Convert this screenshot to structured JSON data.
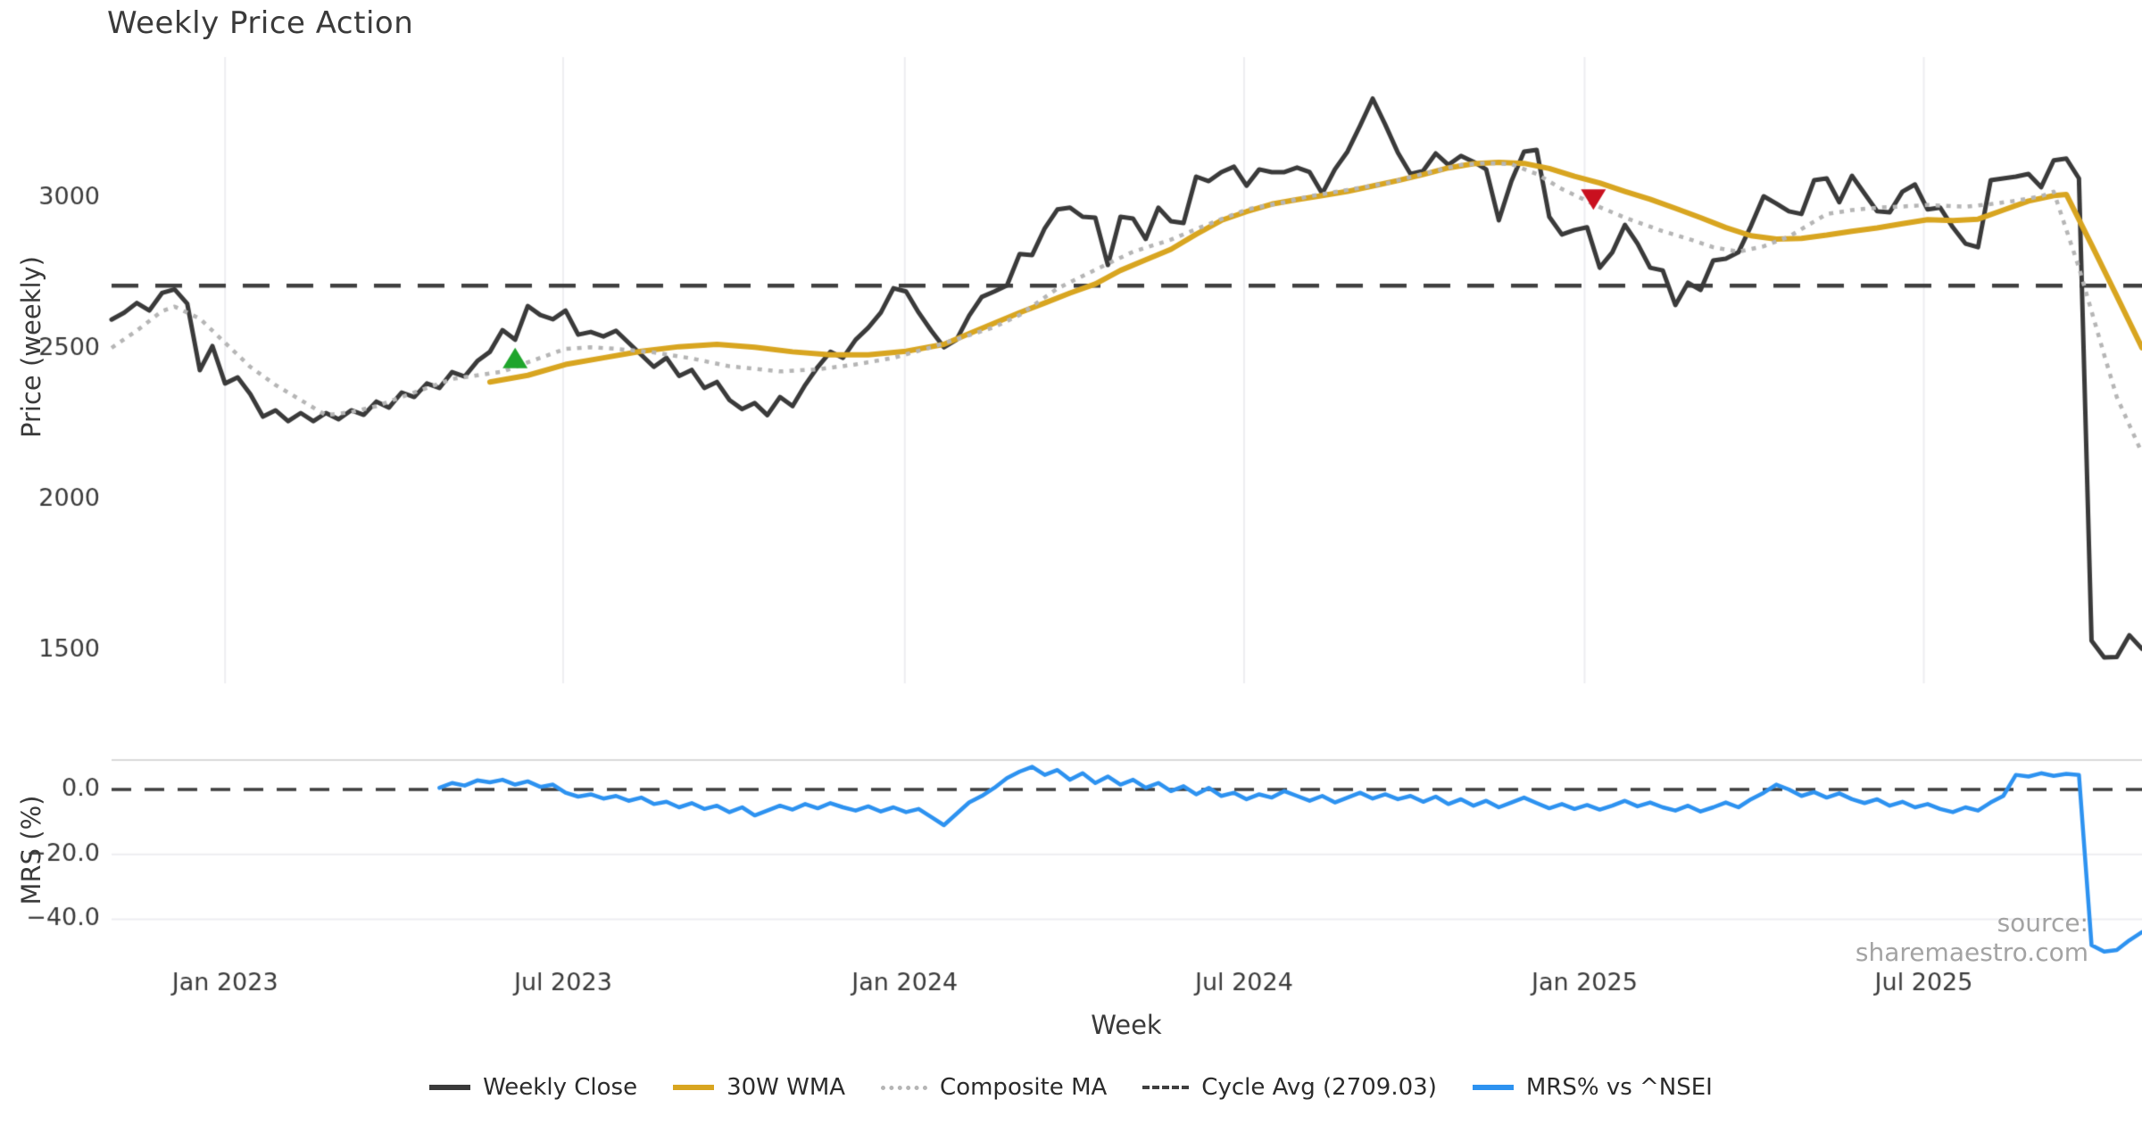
{
  "title": "Weekly Price Action",
  "source_note": "source: sharemaestro.com",
  "axes": {
    "price_axis_label": "Price (weekly)",
    "mrs_axis_label": "MRS (%)",
    "x_axis_label": "Week"
  },
  "legend": {
    "weekly_close": "Weekly Close",
    "wma": "30W WMA",
    "composite": "Composite MA",
    "cycle_avg": "Cycle Avg (2709.03)",
    "mrs": "MRS% vs ^NSEI"
  },
  "colors": {
    "close": "#3a3a3a",
    "wma": "#d8a520",
    "composite": "#b5b5b5",
    "cycle": "#3f3f3f",
    "mrs": "#2d92f0",
    "buy_marker": "#1fa52c",
    "sell_marker": "#c9101f",
    "grid": "#ededf1",
    "panel_border": "#d9d9d9",
    "tick_text": "#3a3a3a"
  },
  "chart_data": {
    "type": "line",
    "title": "Weekly Price Action",
    "x_unit": "week_index",
    "x_ticks": {
      "weeks": [
        9.0,
        35.8,
        62.9,
        89.8,
        116.8,
        143.7
      ],
      "labels": [
        "Jan 2023",
        "Jul 2023",
        "Jan 2024",
        "Jul 2024",
        "Jan 2025",
        "Jul 2025"
      ]
    },
    "price_panel": {
      "ylabel": "Price (weekly)",
      "yticks": [
        3000,
        2500,
        2000,
        1500
      ],
      "ylim": [
        1390,
        3465
      ],
      "cycle_avg": 2709.03,
      "close_values": [
        2597,
        2620,
        2652,
        2627,
        2685,
        2697,
        2650,
        2429,
        2509,
        2385,
        2405,
        2350,
        2275,
        2296,
        2260,
        2287,
        2260,
        2287,
        2266,
        2296,
        2281,
        2325,
        2305,
        2355,
        2340,
        2385,
        2370,
        2423,
        2408,
        2459,
        2490,
        2562,
        2530,
        2642,
        2612,
        2598,
        2627,
        2547,
        2556,
        2541,
        2560,
        2520,
        2480,
        2440,
        2470,
        2410,
        2430,
        2370,
        2390,
        2330,
        2300,
        2320,
        2280,
        2340,
        2310,
        2380,
        2440,
        2490,
        2470,
        2530,
        2570,
        2620,
        2701,
        2690,
        2620,
        2560,
        2505,
        2530,
        2610,
        2672,
        2690,
        2710,
        2814,
        2811,
        2900,
        2962,
        2968,
        2938,
        2935,
        2778,
        2938,
        2932,
        2864,
        2968,
        2923,
        2917,
        3071,
        3056,
        3086,
        3104,
        3041,
        3095,
        3086,
        3086,
        3101,
        3086,
        3015,
        3095,
        3154,
        3240,
        3330,
        3243,
        3150,
        3080,
        3090,
        3148,
        3110,
        3140,
        3120,
        3095,
        2926,
        3056,
        3154,
        3160,
        2938,
        2879,
        2894,
        2903,
        2769,
        2820,
        2911,
        2849,
        2769,
        2760,
        2645,
        2719,
        2695,
        2793,
        2799,
        2820,
        2908,
        3006,
        2982,
        2956,
        2947,
        3059,
        3065,
        2986,
        3074,
        3015,
        2956,
        2953,
        3021,
        3045,
        2962,
        2968,
        2903,
        2849,
        2837,
        3059,
        3065,
        3071,
        3080,
        3036,
        3125,
        3131,
        3065,
        1532,
        1476,
        1478,
        1550,
        1505
      ],
      "wma_pairs": [
        [
          30,
          2390
        ],
        [
          33,
          2412
        ],
        [
          36,
          2448
        ],
        [
          39,
          2470
        ],
        [
          42,
          2492
        ],
        [
          45,
          2507
        ],
        [
          48,
          2515
        ],
        [
          51,
          2505
        ],
        [
          54,
          2490
        ],
        [
          57,
          2480
        ],
        [
          60,
          2480
        ],
        [
          63,
          2492
        ],
        [
          66,
          2515
        ],
        [
          68,
          2550
        ],
        [
          70,
          2585
        ],
        [
          72,
          2620
        ],
        [
          74,
          2652
        ],
        [
          76,
          2685
        ],
        [
          78,
          2715
        ],
        [
          80,
          2760
        ],
        [
          82,
          2795
        ],
        [
          84,
          2830
        ],
        [
          86,
          2880
        ],
        [
          88,
          2926
        ],
        [
          90,
          2955
        ],
        [
          92,
          2980
        ],
        [
          94,
          2995
        ],
        [
          96,
          3008
        ],
        [
          98,
          3022
        ],
        [
          100,
          3040
        ],
        [
          102,
          3058
        ],
        [
          104,
          3078
        ],
        [
          106,
          3100
        ],
        [
          108,
          3114
        ],
        [
          110,
          3118
        ],
        [
          112,
          3115
        ],
        [
          114,
          3098
        ],
        [
          116,
          3072
        ],
        [
          118,
          3050
        ],
        [
          120,
          3022
        ],
        [
          122,
          2996
        ],
        [
          124,
          2966
        ],
        [
          126,
          2935
        ],
        [
          128,
          2902
        ],
        [
          130,
          2875
        ],
        [
          132,
          2864
        ],
        [
          134,
          2866
        ],
        [
          136,
          2877
        ],
        [
          138,
          2890
        ],
        [
          140,
          2901
        ],
        [
          142,
          2915
        ],
        [
          144,
          2928
        ],
        [
          146,
          2925
        ],
        [
          148,
          2930
        ],
        [
          150,
          2960
        ],
        [
          152,
          2990
        ],
        [
          154,
          3008
        ],
        [
          155,
          3012
        ],
        [
          157,
          2845
        ],
        [
          159,
          2675
        ],
        [
          161,
          2503
        ]
      ],
      "composite_pairs": [
        [
          0,
          2503
        ],
        [
          2,
          2560
        ],
        [
          4,
          2625
        ],
        [
          5,
          2640
        ],
        [
          7,
          2600
        ],
        [
          9,
          2520
        ],
        [
          11,
          2440
        ],
        [
          13,
          2380
        ],
        [
          15,
          2330
        ],
        [
          17,
          2280
        ],
        [
          19,
          2290
        ],
        [
          21,
          2310
        ],
        [
          23,
          2340
        ],
        [
          25,
          2370
        ],
        [
          27,
          2400
        ],
        [
          29,
          2412
        ],
        [
          31,
          2424
        ],
        [
          33,
          2455
        ],
        [
          35,
          2485
        ],
        [
          36,
          2500
        ],
        [
          38,
          2505
        ],
        [
          40,
          2500
        ],
        [
          43,
          2488
        ],
        [
          46,
          2468
        ],
        [
          49,
          2442
        ],
        [
          53,
          2425
        ],
        [
          56,
          2432
        ],
        [
          59,
          2448
        ],
        [
          62,
          2470
        ],
        [
          65,
          2505
        ],
        [
          68,
          2545
        ],
        [
          70,
          2572
        ],
        [
          72,
          2612
        ],
        [
          75,
          2700
        ],
        [
          78,
          2762
        ],
        [
          81,
          2822
        ],
        [
          84,
          2862
        ],
        [
          86,
          2897
        ],
        [
          88,
          2930
        ],
        [
          90,
          2962
        ],
        [
          93,
          2986
        ],
        [
          95,
          3006
        ],
        [
          98,
          3027
        ],
        [
          101,
          3048
        ],
        [
          104,
          3080
        ],
        [
          107,
          3110
        ],
        [
          109,
          3116
        ],
        [
          111,
          3112
        ],
        [
          113,
          3080
        ],
        [
          115,
          3030
        ],
        [
          118,
          2970
        ],
        [
          120,
          2935
        ],
        [
          123,
          2890
        ],
        [
          125,
          2865
        ],
        [
          127,
          2837
        ],
        [
          129,
          2822
        ],
        [
          131,
          2840
        ],
        [
          133,
          2872
        ],
        [
          136,
          2947
        ],
        [
          138,
          2960
        ],
        [
          140,
          2968
        ],
        [
          142,
          2972
        ],
        [
          144,
          2977
        ],
        [
          147,
          2971
        ],
        [
          149,
          2980
        ],
        [
          151,
          2991
        ],
        [
          153,
          3006
        ],
        [
          154,
          3021
        ],
        [
          156,
          2769
        ],
        [
          158,
          2480
        ],
        [
          159,
          2340
        ],
        [
          161,
          2154
        ]
      ],
      "markers": [
        {
          "name": "buy-signal",
          "shape": "triangle-up",
          "week": 32,
          "price": 2470,
          "color": "#1fa52c"
        },
        {
          "name": "sell-signal",
          "shape": "triangle-down",
          "week": 117.5,
          "price": 2995,
          "color": "#c9101f"
        }
      ]
    },
    "mrs_panel": {
      "ylabel": "MRS (%)",
      "ytick_values": [
        0,
        -20,
        -40
      ],
      "ytick_labels": [
        "0.0",
        "−20.0",
        "−40.0"
      ],
      "ylim": [
        -51,
        9
      ],
      "zero_line": 0,
      "mrs_pairs": [
        [
          26,
          0.5
        ],
        [
          27,
          2.0
        ],
        [
          28,
          1.2
        ],
        [
          29,
          2.8
        ],
        [
          30,
          2.2
        ],
        [
          31,
          3.0
        ],
        [
          32,
          1.5
        ],
        [
          33,
          2.5
        ],
        [
          34,
          0.8
        ],
        [
          35,
          1.5
        ],
        [
          36,
          -1.0
        ],
        [
          37,
          -2.2
        ],
        [
          38,
          -1.5
        ],
        [
          39,
          -2.8
        ],
        [
          40,
          -2.0
        ],
        [
          41,
          -3.5
        ],
        [
          42,
          -2.5
        ],
        [
          43,
          -4.5
        ],
        [
          44,
          -3.8
        ],
        [
          45,
          -5.5
        ],
        [
          46,
          -4.2
        ],
        [
          47,
          -6.0
        ],
        [
          48,
          -5.0
        ],
        [
          49,
          -7.0
        ],
        [
          50,
          -5.5
        ],
        [
          51,
          -8.0
        ],
        [
          52,
          -6.5
        ],
        [
          53,
          -5.0
        ],
        [
          54,
          -6.2
        ],
        [
          55,
          -4.5
        ],
        [
          56,
          -5.8
        ],
        [
          57,
          -4.2
        ],
        [
          58,
          -5.5
        ],
        [
          59,
          -6.5
        ],
        [
          60,
          -5.2
        ],
        [
          61,
          -6.8
        ],
        [
          62,
          -5.5
        ],
        [
          63,
          -7.0
        ],
        [
          64,
          -6.0
        ],
        [
          65,
          -8.5
        ],
        [
          66,
          -11.0
        ],
        [
          67,
          -7.5
        ],
        [
          68,
          -4.0
        ],
        [
          69,
          -2.0
        ],
        [
          70,
          0.5
        ],
        [
          71,
          3.5
        ],
        [
          72,
          5.5
        ],
        [
          73,
          7.0
        ],
        [
          74,
          4.5
        ],
        [
          75,
          6.0
        ],
        [
          76,
          3.0
        ],
        [
          77,
          5.0
        ],
        [
          78,
          2.0
        ],
        [
          79,
          4.0
        ],
        [
          80,
          1.5
        ],
        [
          81,
          3.0
        ],
        [
          82,
          0.5
        ],
        [
          83,
          2.0
        ],
        [
          84,
          -0.5
        ],
        [
          85,
          1.0
        ],
        [
          86,
          -1.5
        ],
        [
          87,
          0.5
        ],
        [
          88,
          -2.0
        ],
        [
          89,
          -1.0
        ],
        [
          90,
          -3.0
        ],
        [
          91,
          -1.5
        ],
        [
          92,
          -2.5
        ],
        [
          93,
          -0.5
        ],
        [
          94,
          -2.0
        ],
        [
          95,
          -3.5
        ],
        [
          96,
          -2.0
        ],
        [
          97,
          -4.0
        ],
        [
          98,
          -2.5
        ],
        [
          99,
          -1.0
        ],
        [
          100,
          -2.8
        ],
        [
          101,
          -1.5
        ],
        [
          102,
          -3.0
        ],
        [
          103,
          -2.0
        ],
        [
          104,
          -3.8
        ],
        [
          105,
          -2.2
        ],
        [
          106,
          -4.5
        ],
        [
          107,
          -3.0
        ],
        [
          108,
          -5.0
        ],
        [
          109,
          -3.5
        ],
        [
          110,
          -5.5
        ],
        [
          111,
          -4.0
        ],
        [
          112,
          -2.5
        ],
        [
          113,
          -4.2
        ],
        [
          114,
          -5.8
        ],
        [
          115,
          -4.5
        ],
        [
          116,
          -6.0
        ],
        [
          117,
          -4.8
        ],
        [
          118,
          -6.2
        ],
        [
          119,
          -5.0
        ],
        [
          120,
          -3.5
        ],
        [
          121,
          -5.2
        ],
        [
          122,
          -4.0
        ],
        [
          123,
          -5.5
        ],
        [
          124,
          -6.5
        ],
        [
          125,
          -5.0
        ],
        [
          126,
          -6.8
        ],
        [
          127,
          -5.5
        ],
        [
          128,
          -4.0
        ],
        [
          129,
          -5.5
        ],
        [
          130,
          -3.0
        ],
        [
          131,
          -1.0
        ],
        [
          132,
          1.5
        ],
        [
          133,
          0.0
        ],
        [
          134,
          -2.0
        ],
        [
          135,
          -0.8
        ],
        [
          136,
          -2.5
        ],
        [
          137,
          -1.2
        ],
        [
          138,
          -3.0
        ],
        [
          139,
          -4.2
        ],
        [
          140,
          -3.0
        ],
        [
          141,
          -5.0
        ],
        [
          142,
          -3.8
        ],
        [
          143,
          -5.5
        ],
        [
          144,
          -4.5
        ],
        [
          145,
          -6.0
        ],
        [
          146,
          -7.0
        ],
        [
          147,
          -5.5
        ],
        [
          148,
          -6.5
        ],
        [
          149,
          -4.0
        ],
        [
          150,
          -2.0
        ],
        [
          151,
          4.5
        ],
        [
          152,
          4.0
        ],
        [
          153,
          5.0
        ],
        [
          154,
          4.2
        ],
        [
          155,
          4.8
        ],
        [
          156,
          4.5
        ],
        [
          157,
          -48.0
        ],
        [
          158,
          -50.0
        ],
        [
          159,
          -49.5
        ],
        [
          160,
          -46.5
        ],
        [
          161,
          -44.0
        ]
      ]
    }
  }
}
